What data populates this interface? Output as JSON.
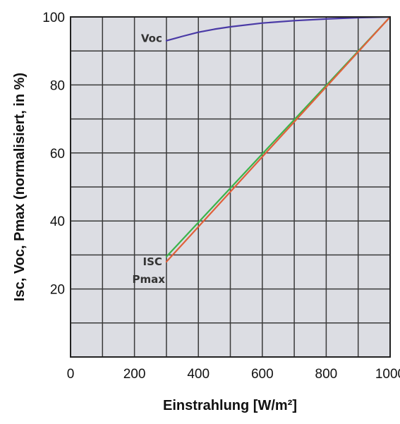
{
  "chart_data": {
    "type": "line",
    "title": "",
    "xlabel": "Einstrahlung [W/m²]",
    "ylabel": "Isc, Voc, Pmax (normalisiert, in %)",
    "xlim": [
      0,
      1000
    ],
    "ylim": [
      0,
      100
    ],
    "x_ticks": [
      "0",
      "200",
      "400",
      "600",
      "800",
      "1000"
    ],
    "y_ticks": [
      "20",
      "40",
      "60",
      "80",
      "100"
    ],
    "grid": true,
    "grid_x_step": 100,
    "grid_y_step": 10,
    "plot_background": "#dcdde3",
    "series": [
      {
        "name": "Voc",
        "color": "#4a3aa6",
        "x": [
          300,
          350,
          400,
          450,
          500,
          600,
          700,
          800,
          900,
          1000
        ],
        "y": [
          93,
          94.3,
          95.5,
          96.4,
          97.1,
          98.2,
          98.9,
          99.4,
          99.8,
          100
        ]
      },
      {
        "name": "ISC",
        "color": "#3cb34a",
        "x": [
          300,
          1000
        ],
        "y": [
          29.5,
          100
        ]
      },
      {
        "name": "Pmax",
        "color": "#e0603a",
        "x": [
          300,
          1000
        ],
        "y": [
          28,
          100
        ]
      }
    ]
  }
}
